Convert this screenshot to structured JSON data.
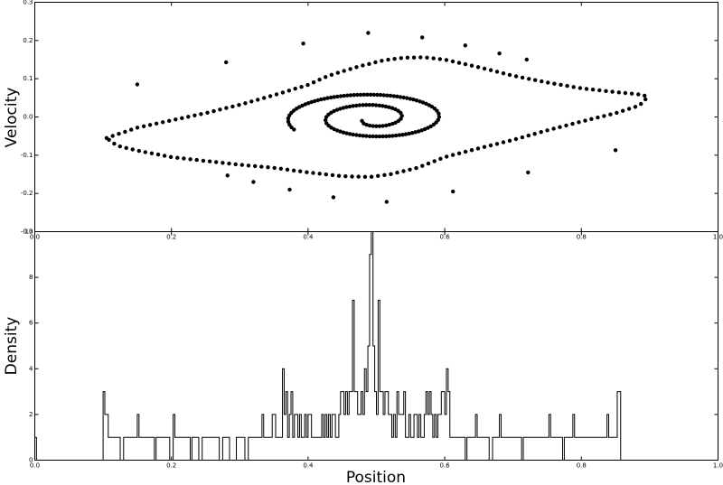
{
  "chart_data": [
    {
      "type": "scatter",
      "panel": "phase-space",
      "xlabel": "",
      "ylabel": "Velocity",
      "xlim": [
        0.0,
        1.0
      ],
      "ylim": [
        -0.3,
        0.3
      ],
      "yticks": [
        "0.3",
        "0.2",
        "0.1",
        "0.0",
        "-0.1",
        "-0.2",
        "-0.3"
      ],
      "yticks_values": [
        0.3,
        0.2,
        0.1,
        0.0,
        -0.1,
        -0.2,
        -0.3
      ],
      "grid": false,
      "outer_loop": [
        [
          0.105,
          -0.055
        ],
        [
          0.15,
          -0.028
        ],
        [
          0.2,
          -0.009
        ],
        [
          0.25,
          0.01
        ],
        [
          0.3,
          0.032
        ],
        [
          0.35,
          0.057
        ],
        [
          0.4,
          0.084
        ],
        [
          0.43,
          0.108
        ],
        [
          0.47,
          0.13
        ],
        [
          0.51,
          0.148
        ],
        [
          0.54,
          0.155
        ],
        [
          0.57,
          0.156
        ],
        [
          0.6,
          0.15
        ],
        [
          0.65,
          0.13
        ],
        [
          0.7,
          0.108
        ],
        [
          0.75,
          0.09
        ],
        [
          0.8,
          0.075
        ],
        [
          0.85,
          0.065
        ],
        [
          0.89,
          0.058
        ],
        [
          0.897,
          0.052
        ],
        [
          0.885,
          0.03
        ],
        [
          0.85,
          0.01
        ],
        [
          0.8,
          -0.012
        ],
        [
          0.75,
          -0.035
        ],
        [
          0.7,
          -0.06
        ],
        [
          0.65,
          -0.082
        ],
        [
          0.6,
          -0.105
        ],
        [
          0.56,
          -0.133
        ],
        [
          0.52,
          -0.15
        ],
        [
          0.49,
          -0.157
        ],
        [
          0.45,
          -0.155
        ],
        [
          0.4,
          -0.145
        ],
        [
          0.35,
          -0.133
        ],
        [
          0.3,
          -0.125
        ],
        [
          0.25,
          -0.115
        ],
        [
          0.2,
          -0.105
        ],
        [
          0.15,
          -0.088
        ],
        [
          0.12,
          -0.075
        ],
        [
          0.105,
          -0.055
        ]
      ],
      "spiral_center": [
        0.495,
        -0.003
      ],
      "spiral_turns": 2.0,
      "spiral_start_angle": 3.6,
      "spiral_rx": [
        0.018,
        0.128
      ],
      "spiral_ry": [
        0.016,
        0.07
      ],
      "outliers": [
        [
          0.15,
          0.085
        ],
        [
          0.28,
          0.143
        ],
        [
          0.393,
          0.192
        ],
        [
          0.488,
          0.22
        ],
        [
          0.567,
          0.208
        ],
        [
          0.63,
          0.187
        ],
        [
          0.68,
          0.166
        ],
        [
          0.72,
          0.15
        ],
        [
          0.85,
          -0.087
        ],
        [
          0.722,
          -0.145
        ],
        [
          0.612,
          -0.195
        ],
        [
          0.515,
          -0.222
        ],
        [
          0.437,
          -0.21
        ],
        [
          0.373,
          -0.19
        ],
        [
          0.32,
          -0.17
        ],
        [
          0.282,
          -0.153
        ]
      ]
    },
    {
      "type": "histogram",
      "panel": "density",
      "xlabel": "Position",
      "ylabel": "Density",
      "xlim": [
        0.0,
        1.0
      ],
      "ylim": [
        0,
        10
      ],
      "xticks": [
        "0.0",
        "0.2",
        "0.4",
        "0.6",
        "0.8",
        "1.0"
      ],
      "xticks_values": [
        0.0,
        0.2,
        0.4,
        0.6,
        0.8,
        1.0
      ],
      "yticks": [
        "10",
        "8",
        "6",
        "4",
        "2",
        "0"
      ],
      "yticks_values": [
        10,
        8,
        6,
        4,
        2,
        0
      ],
      "top_panel_xticks": [
        "0.0",
        "0.2",
        "0.4",
        "0.6",
        "0.8",
        "1.0"
      ],
      "bin_width": 0.0025,
      "values": [
        1,
        0,
        0,
        0,
        0,
        0,
        0,
        0,
        0,
        0,
        0,
        0,
        0,
        0,
        0,
        0,
        0,
        0,
        0,
        0,
        0,
        0,
        0,
        0,
        0,
        0,
        0,
        0,
        0,
        0,
        0,
        0,
        0,
        0,
        0,
        0,
        0,
        0,
        0,
        0,
        3,
        2,
        2,
        1,
        1,
        1,
        1,
        1,
        1,
        1,
        0,
        0,
        1,
        1,
        1,
        1,
        1,
        1,
        1,
        1,
        2,
        1,
        1,
        1,
        1,
        1,
        1,
        1,
        1,
        1,
        0,
        1,
        1,
        1,
        1,
        1,
        1,
        1,
        1,
        0,
        0,
        2,
        1,
        1,
        1,
        1,
        1,
        1,
        1,
        1,
        1,
        0,
        1,
        1,
        1,
        1,
        0,
        0,
        1,
        1,
        1,
        1,
        1,
        1,
        1,
        1,
        1,
        1,
        0,
        0,
        1,
        1,
        1,
        1,
        0,
        0,
        0,
        0,
        1,
        1,
        1,
        1,
        1,
        0,
        0,
        1,
        1,
        1,
        1,
        1,
        1,
        1,
        1,
        2,
        1,
        1,
        1,
        1,
        1,
        2,
        2,
        1,
        1,
        1,
        1,
        4,
        2,
        3,
        1,
        2,
        3,
        1,
        2,
        2,
        1,
        2,
        1,
        1,
        2,
        1,
        2,
        2,
        1,
        1,
        1,
        1,
        1,
        1,
        2,
        1,
        2,
        1,
        2,
        1,
        2,
        2,
        1,
        1,
        2,
        3,
        3,
        2,
        3,
        2,
        3,
        3,
        7,
        3,
        3,
        2,
        2,
        3,
        2,
        4,
        3,
        5,
        9,
        10,
        5,
        3,
        2,
        7,
        3,
        3,
        2,
        3,
        3,
        2,
        2,
        1,
        2,
        1,
        3,
        2,
        2,
        2,
        3,
        1,
        1,
        2,
        1,
        1,
        2,
        2,
        1,
        2,
        1,
        1,
        2,
        3,
        2,
        3,
        2,
        1,
        2,
        1,
        2,
        2,
        3,
        3,
        2,
        4,
        3,
        1,
        1,
        1,
        1,
        1,
        1,
        1,
        1,
        1,
        0,
        1,
        1,
        1,
        1,
        1,
        2,
        1,
        1,
        1,
        1,
        1,
        1,
        1,
        0,
        0,
        1,
        1,
        1,
        1,
        2,
        1,
        1,
        1,
        1,
        1,
        1,
        1,
        1,
        1,
        1,
        1,
        1,
        0,
        1,
        1,
        1,
        1,
        1,
        1,
        1,
        1,
        1,
        1,
        1,
        1,
        1,
        1,
        1,
        2,
        1,
        1,
        1,
        1,
        1,
        1,
        1,
        0,
        1,
        1,
        1,
        1,
        1,
        2,
        1,
        1,
        1,
        1,
        1,
        1,
        1,
        1,
        1,
        1,
        1,
        1,
        1,
        1,
        1,
        1,
        1,
        1,
        1,
        2,
        1,
        1,
        1,
        1,
        1,
        3,
        3,
        0
      ],
      "grid": false
    }
  ]
}
